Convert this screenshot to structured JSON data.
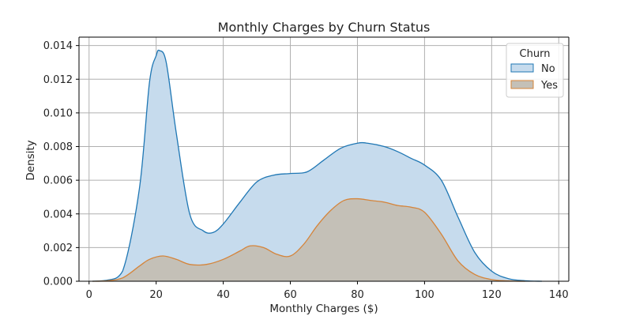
{
  "chart_data": {
    "type": "area",
    "title": "Monthly Charges by Churn Status",
    "xlabel": "Monthly Charges ($)",
    "ylabel": "Density",
    "xlim": [
      -3,
      143
    ],
    "ylim": [
      0,
      0.0145
    ],
    "xticks": [
      0,
      20,
      40,
      60,
      80,
      100,
      120,
      140
    ],
    "yticks": [
      0.0,
      0.002,
      0.004,
      0.006,
      0.008,
      0.01,
      0.012,
      0.014
    ],
    "ytick_labels": [
      "0.000",
      "0.002",
      "0.004",
      "0.006",
      "0.008",
      "0.010",
      "0.012",
      "0.014"
    ],
    "grid": true,
    "legend": {
      "title": "Churn",
      "placement": "top-right"
    },
    "series": [
      {
        "name": "No",
        "color": "#1f77b4",
        "fill": "#c6dbed",
        "x": [
          1,
          5,
          10,
          15,
          18,
          20,
          21,
          23,
          26,
          30,
          34,
          37,
          40,
          45,
          50,
          55,
          60,
          65,
          70,
          75,
          80,
          83,
          88,
          92,
          96,
          100,
          105,
          110,
          115,
          120,
          125,
          130,
          135
        ],
        "y": [
          0.0,
          5e-05,
          0.0006,
          0.0055,
          0.0118,
          0.0134,
          0.0137,
          0.013,
          0.0088,
          0.004,
          0.003,
          0.0029,
          0.0034,
          0.0047,
          0.0059,
          0.0063,
          0.0064,
          0.0065,
          0.0072,
          0.0079,
          0.0082,
          0.0082,
          0.008,
          0.0077,
          0.0073,
          0.0069,
          0.006,
          0.0038,
          0.0017,
          0.0006,
          0.00015,
          3e-05,
          0.0
        ]
      },
      {
        "name": "Yes",
        "color": "#d5843a",
        "fill": "#c4c0b7",
        "x": [
          1,
          5,
          10,
          15,
          18,
          22,
          26,
          30,
          35,
          40,
          45,
          48,
          52,
          56,
          60,
          64,
          68,
          72,
          76,
          80,
          84,
          88,
          92,
          96,
          100,
          105,
          110,
          115,
          120,
          125,
          130
        ],
        "y": [
          0.0,
          2e-05,
          0.0002,
          0.0009,
          0.0013,
          0.0015,
          0.0013,
          0.001,
          0.001,
          0.0013,
          0.0018,
          0.0021,
          0.002,
          0.0016,
          0.0015,
          0.0022,
          0.0033,
          0.0042,
          0.0048,
          0.0049,
          0.0048,
          0.0047,
          0.0045,
          0.0044,
          0.0041,
          0.0028,
          0.0012,
          0.0004,
          0.0001,
          2e-05,
          0.0
        ]
      }
    ]
  }
}
